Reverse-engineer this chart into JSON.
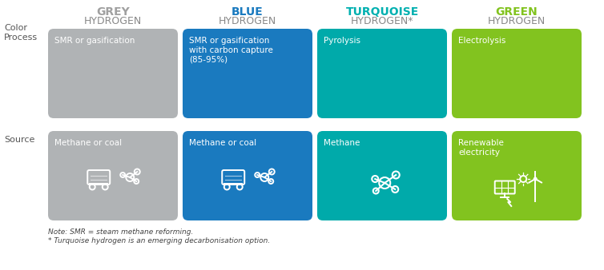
{
  "columns": [
    "grey",
    "blue",
    "turquoise",
    "green"
  ],
  "header_labels": [
    [
      "GREY",
      "HYDROGEN"
    ],
    [
      "BLUE",
      "HYDROGEN"
    ],
    [
      "TURQUOISE",
      "HYDROGEN*"
    ],
    [
      "GREEN",
      "HYDROGEN"
    ]
  ],
  "header_colors": [
    "#a0a0a0",
    "#1a7abf",
    "#00b0b0",
    "#82c31f"
  ],
  "box_colors": [
    "#b0b3b5",
    "#1a7abf",
    "#00aaaa",
    "#82c31f"
  ],
  "process_text": [
    "SMR or gasification",
    "SMR or gasification\nwith carbon capture\n(85-95%)",
    "Pyrolysis",
    "Electrolysis"
  ],
  "source_text": [
    "Methane or coal",
    "Methane or coal",
    "Methane",
    "Renewable\nelectricity"
  ],
  "row_labels": [
    "Color",
    "Process",
    "Source"
  ],
  "note1": "Note: SMR = steam methane reforming.",
  "note2": "* Turquoise hydrogen is an emerging decarbonisation option.",
  "bg_color": "#ffffff",
  "text_color_white": "#ffffff",
  "text_color_dark": "#555555",
  "header_sub_color": "#888888"
}
